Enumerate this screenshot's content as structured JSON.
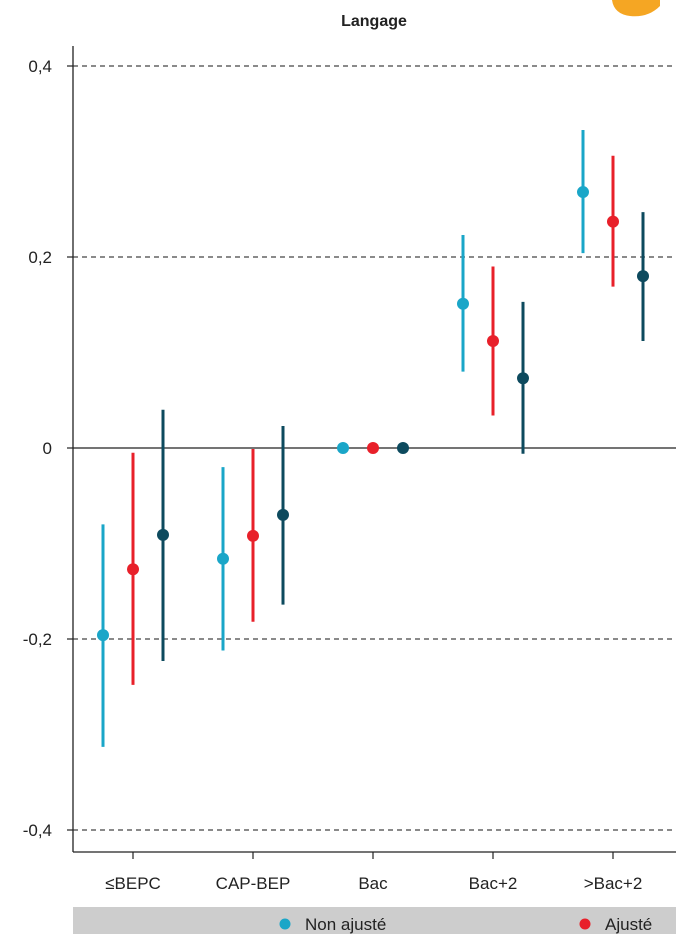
{
  "chart_data": {
    "type": "scatter",
    "title": "Langage",
    "xlabel": "",
    "ylabel": "",
    "categories": [
      "≤BEPC",
      "CAP-BEP",
      "Bac",
      "Bac+2",
      ">Bac+2"
    ],
    "ylim": [
      -0.42,
      0.42
    ],
    "yticks": [
      0.4,
      0.2,
      0,
      -0.2,
      -0.4
    ],
    "ytick_labels": [
      "0,4",
      "0,2",
      "0",
      "-0,2",
      "-0,4"
    ],
    "grid": "horizontal dashed at ±0,2 and ±0,4; solid line at 0",
    "series": [
      {
        "name": "Non ajusté",
        "color": "#1aa6c8",
        "values": [
          -0.196,
          -0.116,
          0.0,
          0.151,
          0.268
        ],
        "lower": [
          -0.313,
          -0.212,
          0.0,
          0.08,
          0.204
        ],
        "upper": [
          -0.08,
          -0.02,
          0.0,
          0.223,
          0.333
        ]
      },
      {
        "name": "Ajusté",
        "color": "#e8202a",
        "values": [
          -0.127,
          -0.092,
          0.0,
          0.112,
          0.237
        ],
        "lower": [
          -0.248,
          -0.182,
          0.0,
          0.034,
          0.169
        ],
        "upper": [
          -0.005,
          -0.001,
          0.0,
          0.19,
          0.306
        ]
      },
      {
        "name": "",
        "color": "#0d4a5e",
        "values": [
          -0.091,
          -0.07,
          0.0,
          0.073,
          0.18
        ],
        "lower": [
          -0.223,
          -0.164,
          0.0,
          -0.006,
          0.112
        ],
        "upper": [
          0.04,
          0.023,
          0.0,
          0.153,
          0.247
        ]
      }
    ],
    "legend": {
      "placement": "bottom",
      "items": [
        {
          "label": "Non ajusté",
          "color": "#1aa6c8"
        },
        {
          "label": "Ajusté",
          "color": "#e8202a"
        }
      ]
    }
  },
  "colors": {
    "legend_band": "#cdcdcd",
    "axis": "#222222",
    "grid": "#444444",
    "corner_badge": "#f5a623"
  }
}
